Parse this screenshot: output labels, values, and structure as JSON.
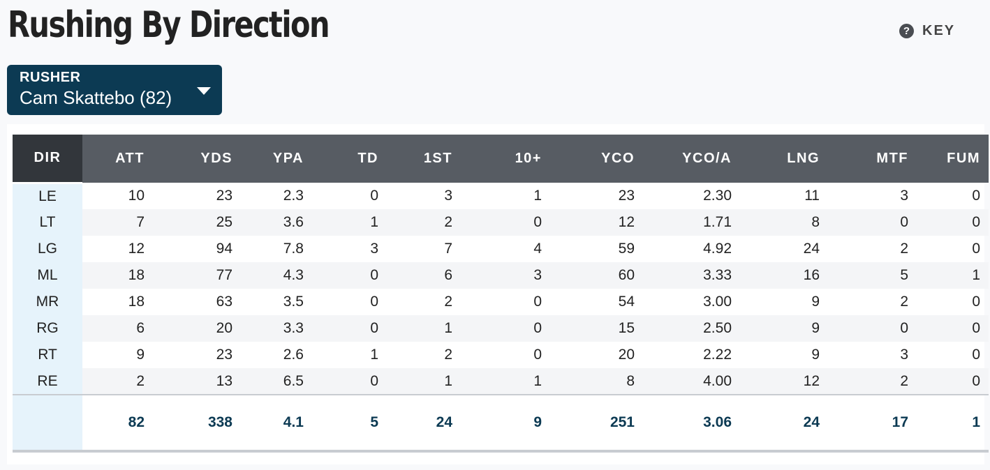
{
  "title": "Rushing By Direction",
  "key_label": "KEY",
  "rusher": {
    "label": "RUSHER",
    "value": "Cam Skattebo (82)"
  },
  "table": {
    "columns": [
      "DIR",
      "ATT",
      "YDS",
      "YPA",
      "TD",
      "1ST",
      "10+",
      "YCO",
      "YCO/A",
      "LNG",
      "MTF",
      "FUM"
    ],
    "rows": [
      [
        "LE",
        "10",
        "23",
        "2.3",
        "0",
        "3",
        "1",
        "23",
        "2.30",
        "11",
        "3",
        "0"
      ],
      [
        "LT",
        "7",
        "25",
        "3.6",
        "1",
        "2",
        "0",
        "12",
        "1.71",
        "8",
        "0",
        "0"
      ],
      [
        "LG",
        "12",
        "94",
        "7.8",
        "3",
        "7",
        "4",
        "59",
        "4.92",
        "24",
        "2",
        "0"
      ],
      [
        "ML",
        "18",
        "77",
        "4.3",
        "0",
        "6",
        "3",
        "60",
        "3.33",
        "16",
        "5",
        "1"
      ],
      [
        "MR",
        "18",
        "63",
        "3.5",
        "0",
        "2",
        "0",
        "54",
        "3.00",
        "9",
        "2",
        "0"
      ],
      [
        "RG",
        "6",
        "20",
        "3.3",
        "0",
        "1",
        "0",
        "15",
        "2.50",
        "9",
        "0",
        "0"
      ],
      [
        "RT",
        "9",
        "23",
        "2.6",
        "1",
        "2",
        "0",
        "20",
        "2.22",
        "9",
        "3",
        "0"
      ],
      [
        "RE",
        "2",
        "13",
        "6.5",
        "0",
        "1",
        "1",
        "8",
        "4.00",
        "12",
        "2",
        "0"
      ]
    ],
    "totals": [
      "",
      "82",
      "338",
      "4.1",
      "5",
      "24",
      "9",
      "251",
      "3.06",
      "24",
      "17",
      "1"
    ]
  }
}
